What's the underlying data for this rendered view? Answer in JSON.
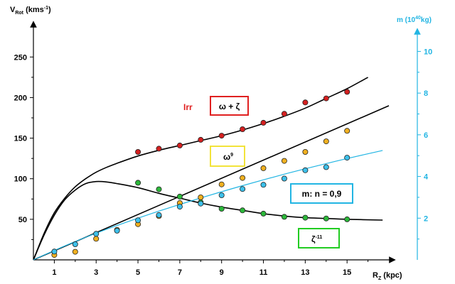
{
  "chart_data": {
    "type": "scatter",
    "left_axis": {
      "label": "V",
      "label_sub": "Rot",
      "label_unit": " (kms",
      "label_unit_sup": "-1",
      "label_unit_end": ")",
      "ticks": [
        50,
        100,
        150,
        200,
        250
      ],
      "range": [
        0,
        280
      ]
    },
    "right_axis": {
      "label": "m (10",
      "label_sup": "40",
      "label_end": "kg)",
      "ticks": [
        2,
        4,
        6,
        8,
        10
      ],
      "range": [
        0,
        10.9
      ],
      "color": "#22b5e3"
    },
    "x_axis": {
      "label": "R",
      "label_sub": "Z",
      "label_end": " (kpc)",
      "ticks": [
        1,
        3,
        5,
        7,
        9,
        11,
        13,
        15
      ],
      "minor_ticks": [
        2,
        4,
        6,
        8,
        10,
        12,
        14,
        16
      ],
      "range": [
        0,
        17
      ]
    },
    "annotations": [
      {
        "id": "irr",
        "text": "Irr",
        "color": "#e02020"
      },
      {
        "id": "omega-zeta",
        "text": "ω + ζ",
        "border": "#e02020"
      },
      {
        "id": "omega9",
        "text": "ω",
        "sup": "9",
        "border": "#f2e33a"
      },
      {
        "id": "mass",
        "text": "m: n = 0,9",
        "border": "#22b5e3"
      },
      {
        "id": "zeta11",
        "text": "ζ",
        "sup": "-11",
        "border": "#22cc22"
      }
    ],
    "series": [
      {
        "id": "omega-zeta-points",
        "color": "#d42020",
        "axis": "left",
        "x": [
          5,
          6,
          7,
          8,
          9,
          10,
          11,
          12,
          13,
          14,
          15
        ],
        "y": [
          133,
          137,
          141,
          148,
          153,
          161,
          169,
          180,
          194,
          199,
          207
        ]
      },
      {
        "id": "omega9-points",
        "color": "#f0b020",
        "axis": "left",
        "x": [
          1,
          2,
          3,
          4,
          5,
          6,
          7,
          8,
          9,
          10,
          11,
          12,
          13,
          14,
          15
        ],
        "y": [
          6,
          10,
          26,
          37,
          44,
          54,
          70,
          77,
          93,
          101,
          113,
          122,
          133,
          146,
          159
        ]
      },
      {
        "id": "zeta11-points",
        "color": "#2cb83a",
        "axis": "left",
        "x": [
          5,
          6,
          7,
          8,
          9,
          10,
          11,
          12,
          13,
          14,
          15
        ],
        "y": [
          95,
          87,
          78,
          71,
          63,
          61,
          57,
          53,
          52,
          51,
          50
        ]
      },
      {
        "id": "mass-points",
        "color": "#3cc0ea",
        "axis": "right",
        "x": [
          1,
          2,
          3,
          4,
          5,
          6,
          7,
          8,
          9,
          10,
          11,
          12,
          13,
          14,
          15
        ],
        "y": [
          0.4,
          0.75,
          1.25,
          1.4,
          1.9,
          2.15,
          2.55,
          2.7,
          3.1,
          3.4,
          3.6,
          3.9,
          4.3,
          4.45,
          4.9
        ]
      }
    ],
    "curves": [
      {
        "id": "omega-zeta-curve",
        "color": "#000000",
        "axis": "left",
        "x": [
          0,
          0.5,
          1,
          1.5,
          2,
          2.5,
          3,
          3.5,
          4,
          5,
          6,
          7,
          8,
          9,
          10,
          11,
          12,
          13,
          14,
          15,
          16
        ],
        "y": [
          0,
          32,
          58,
          76,
          90,
          100,
          108,
          114,
          119,
          128,
          135,
          141,
          147,
          153,
          160,
          168,
          177,
          187,
          199,
          211,
          225
        ]
      },
      {
        "id": "zeta11-curve",
        "color": "#000000",
        "axis": "left",
        "x": [
          0,
          0.5,
          1,
          1.5,
          2,
          2.5,
          3,
          3.5,
          4,
          5,
          6,
          7,
          8,
          9,
          10,
          11,
          12,
          13,
          14,
          15,
          16.7
        ],
        "y": [
          0,
          30,
          55,
          74,
          86,
          94,
          96.5,
          96,
          94,
          89,
          82,
          76,
          70,
          65,
          61,
          57,
          54,
          52,
          51,
          50,
          49
        ]
      },
      {
        "id": "omega9-curve",
        "color": "#000000",
        "axis": "left",
        "x": [
          0,
          17
        ],
        "y": [
          0,
          190
        ]
      },
      {
        "id": "mass-curve",
        "color": "#22b5e3",
        "axis": "right",
        "x": [
          0,
          1,
          2,
          3,
          4,
          5,
          6,
          7,
          8,
          9,
          10,
          11,
          12,
          13,
          14,
          15,
          16.7
        ],
        "y": [
          0,
          0.45,
          0.88,
          1.28,
          1.65,
          2.0,
          2.34,
          2.66,
          2.97,
          3.27,
          3.56,
          3.84,
          4.11,
          4.37,
          4.62,
          4.86,
          5.25
        ]
      }
    ]
  }
}
